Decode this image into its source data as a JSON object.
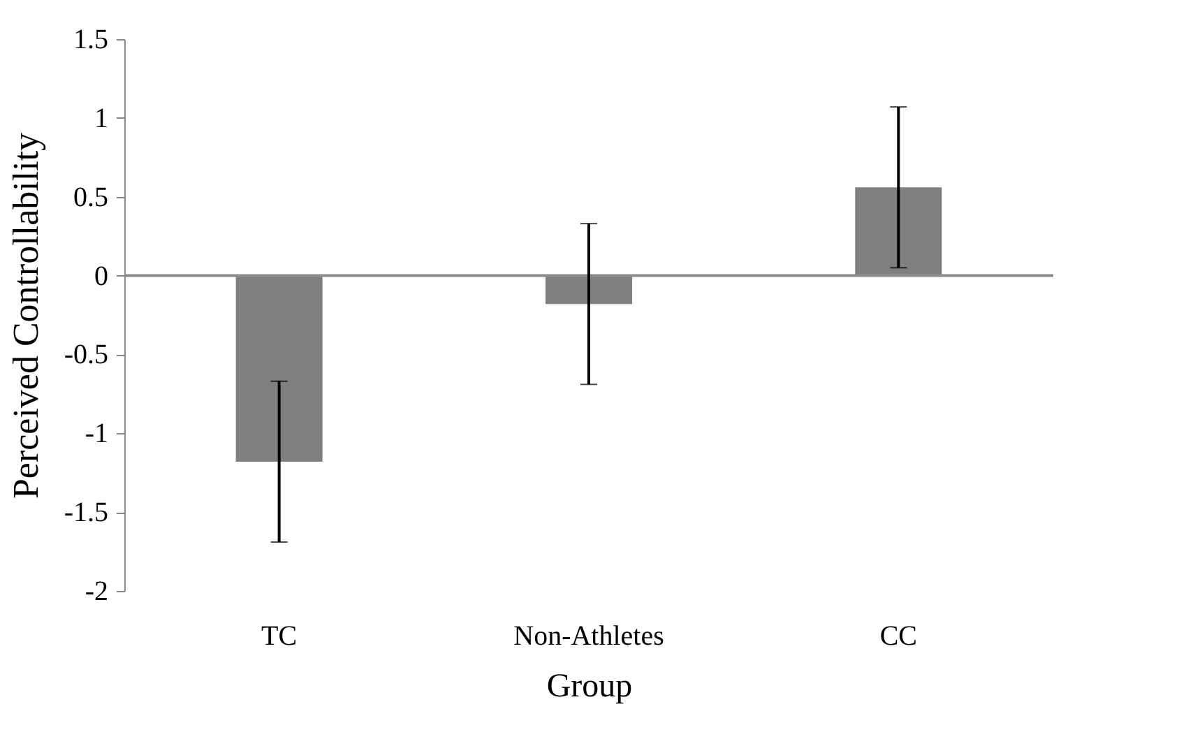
{
  "chart_data": {
    "type": "bar",
    "xlabel": "Group",
    "ylabel": "Perceived  Controllability",
    "categories": [
      "TC",
      "Non-Athletes",
      "CC"
    ],
    "values": [
      -1.18,
      -0.18,
      0.56
    ],
    "errors": [
      0.51,
      0.51,
      0.51
    ],
    "color": "#7f7f7f",
    "ylim": [
      -2,
      1.5
    ],
    "yticks": [
      -2,
      -1.5,
      -1,
      -0.5,
      0,
      0.5,
      1,
      1.5
    ],
    "ref_lines": [
      {
        "axis": "y",
        "value": 0,
        "color": "#8c8c8c"
      }
    ],
    "grid": false
  }
}
